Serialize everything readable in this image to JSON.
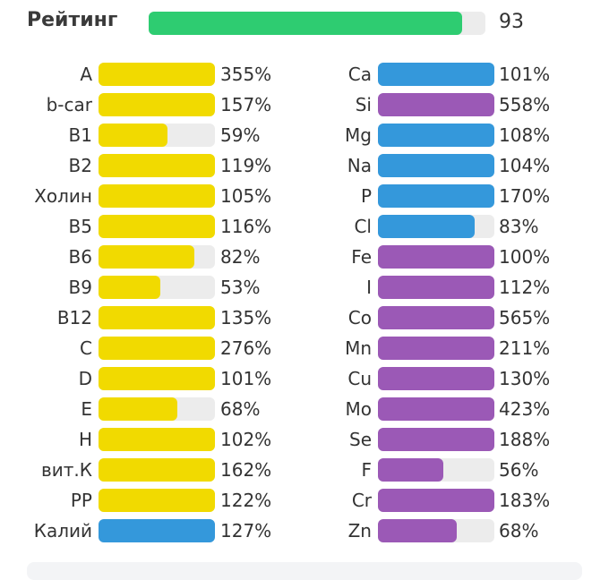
{
  "rating": {
    "label": "Рейтинг",
    "value": "93",
    "fill_fraction": 0.93,
    "color": "#2ecc71"
  },
  "colors": {
    "vitamin": "#f1da00",
    "macro": "#3498db",
    "micro": "#9b59b6",
    "track": "#ececec"
  },
  "left_column": [
    {
      "label": "A",
      "percent": "355%",
      "value": 355,
      "group": "vitamin"
    },
    {
      "label": "b-car",
      "percent": "157%",
      "value": 157,
      "group": "vitamin"
    },
    {
      "label": "B1",
      "percent": "59%",
      "value": 59,
      "group": "vitamin"
    },
    {
      "label": "B2",
      "percent": "119%",
      "value": 119,
      "group": "vitamin"
    },
    {
      "label": "Холин",
      "percent": "105%",
      "value": 105,
      "group": "vitamin"
    },
    {
      "label": "B5",
      "percent": "116%",
      "value": 116,
      "group": "vitamin"
    },
    {
      "label": "B6",
      "percent": "82%",
      "value": 82,
      "group": "vitamin"
    },
    {
      "label": "B9",
      "percent": "53%",
      "value": 53,
      "group": "vitamin"
    },
    {
      "label": "B12",
      "percent": "135%",
      "value": 135,
      "group": "vitamin"
    },
    {
      "label": "C",
      "percent": "276%",
      "value": 276,
      "group": "vitamin"
    },
    {
      "label": "D",
      "percent": "101%",
      "value": 101,
      "group": "vitamin"
    },
    {
      "label": "E",
      "percent": "68%",
      "value": 68,
      "group": "vitamin"
    },
    {
      "label": "H",
      "percent": "102%",
      "value": 102,
      "group": "vitamin"
    },
    {
      "label": "вит.К",
      "percent": "162%",
      "value": 162,
      "group": "vitamin"
    },
    {
      "label": "PP",
      "percent": "122%",
      "value": 122,
      "group": "vitamin"
    },
    {
      "label": "Калий",
      "percent": "127%",
      "value": 127,
      "group": "macro"
    }
  ],
  "right_column": [
    {
      "label": "Ca",
      "percent": "101%",
      "value": 101,
      "group": "macro"
    },
    {
      "label": "Si",
      "percent": "558%",
      "value": 558,
      "group": "micro"
    },
    {
      "label": "Mg",
      "percent": "108%",
      "value": 108,
      "group": "macro"
    },
    {
      "label": "Na",
      "percent": "104%",
      "value": 104,
      "group": "macro"
    },
    {
      "label": "P",
      "percent": "170%",
      "value": 170,
      "group": "macro"
    },
    {
      "label": "Cl",
      "percent": "83%",
      "value": 83,
      "group": "macro"
    },
    {
      "label": "Fe",
      "percent": "100%",
      "value": 100,
      "group": "micro"
    },
    {
      "label": "I",
      "percent": "112%",
      "value": 112,
      "group": "micro"
    },
    {
      "label": "Co",
      "percent": "565%",
      "value": 565,
      "group": "micro"
    },
    {
      "label": "Mn",
      "percent": "211%",
      "value": 211,
      "group": "micro"
    },
    {
      "label": "Cu",
      "percent": "130%",
      "value": 130,
      "group": "micro"
    },
    {
      "label": "Mo",
      "percent": "423%",
      "value": 423,
      "group": "micro"
    },
    {
      "label": "Se",
      "percent": "188%",
      "value": 188,
      "group": "micro"
    },
    {
      "label": "F",
      "percent": "56%",
      "value": 56,
      "group": "micro"
    },
    {
      "label": "Cr",
      "percent": "183%",
      "value": 183,
      "group": "micro"
    },
    {
      "label": "Zn",
      "percent": "68%",
      "value": 68,
      "group": "micro"
    }
  ]
}
